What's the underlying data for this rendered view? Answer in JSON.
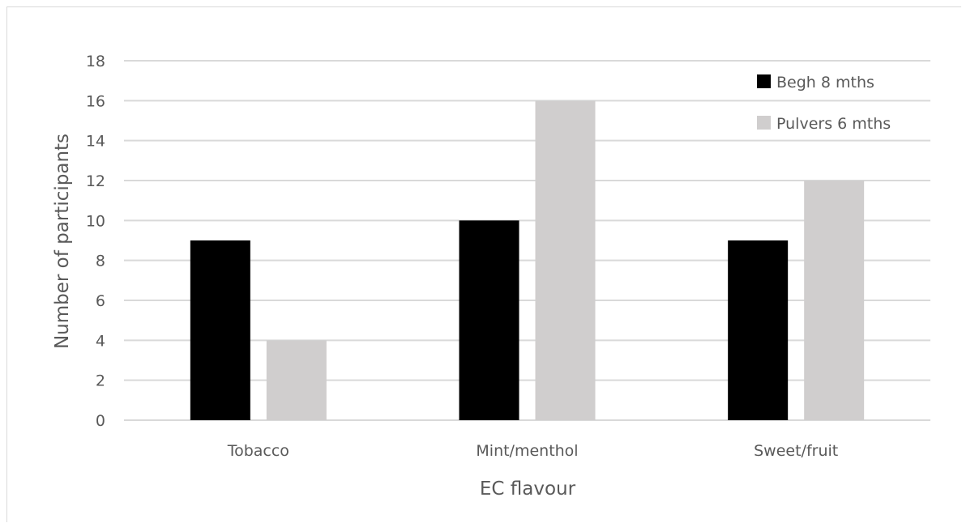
{
  "chart_data": {
    "type": "bar",
    "categories": [
      "Tobacco",
      "Mint/menthol",
      "Sweet/fruit"
    ],
    "series": [
      {
        "name": "Begh 8 mths",
        "values": [
          9,
          10,
          9
        ],
        "color": "#000000"
      },
      {
        "name": "Pulvers 6 mths",
        "values": [
          4,
          16,
          12
        ],
        "color": "#d0cece"
      }
    ],
    "xlabel": "EC flavour",
    "ylabel": "Number of participants",
    "ylim": [
      0,
      18
    ],
    "yticks": [
      0,
      2,
      4,
      6,
      8,
      10,
      12,
      14,
      16,
      18
    ],
    "grid": true,
    "legend": "top-right"
  }
}
